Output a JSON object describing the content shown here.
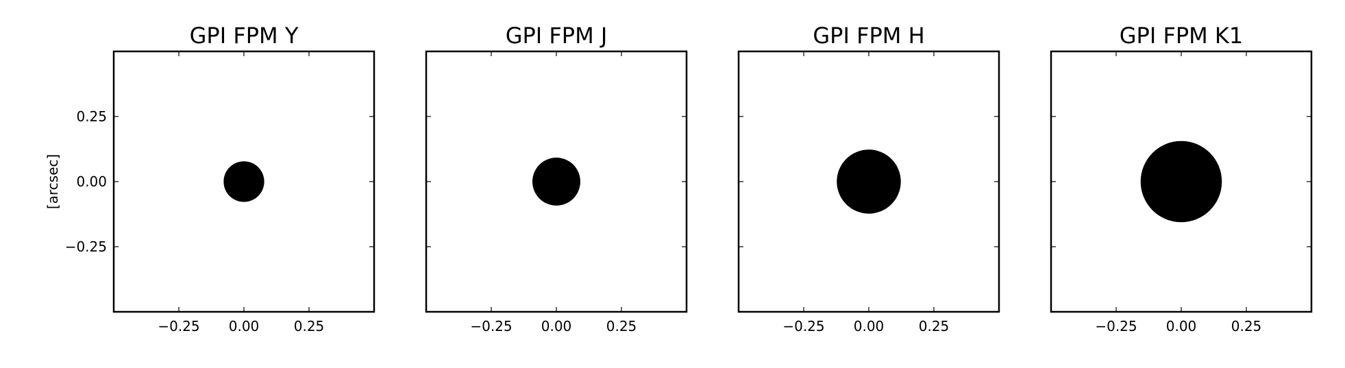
{
  "figure": {
    "background": "#ffffff",
    "ylabel": "[arcsec]"
  },
  "chart_data": [
    {
      "type": "heatmap",
      "title": "GPI FPM Y",
      "xlim": [
        -0.5,
        0.5
      ],
      "ylim": [
        -0.5,
        0.5
      ],
      "xticks": [
        -0.25,
        0.0,
        0.25
      ],
      "yticks": [
        -0.25,
        0.0,
        0.25
      ],
      "xtick_labels": [
        "−0.25",
        "0.00",
        "0.25"
      ],
      "ytick_labels": [
        "−0.25",
        "0.00",
        "0.25"
      ],
      "ylabel": "[arcsec]",
      "show_yticklabels": true,
      "mask": {
        "shape": "circle",
        "center": [
          0.0,
          0.0
        ],
        "radius": 0.078,
        "fill": "#000000",
        "background": "#ffffff"
      }
    },
    {
      "type": "heatmap",
      "title": "GPI FPM J",
      "xlim": [
        -0.5,
        0.5
      ],
      "ylim": [
        -0.5,
        0.5
      ],
      "xticks": [
        -0.25,
        0.0,
        0.25
      ],
      "yticks": [
        -0.25,
        0.0,
        0.25
      ],
      "xtick_labels": [
        "−0.25",
        "0.00",
        "0.25"
      ],
      "ytick_labels": [],
      "ylabel": "",
      "show_yticklabels": false,
      "mask": {
        "shape": "circle",
        "center": [
          0.0,
          0.0
        ],
        "radius": 0.092,
        "fill": "#000000",
        "background": "#ffffff"
      }
    },
    {
      "type": "heatmap",
      "title": "GPI FPM H",
      "xlim": [
        -0.5,
        0.5
      ],
      "ylim": [
        -0.5,
        0.5
      ],
      "xticks": [
        -0.25,
        0.0,
        0.25
      ],
      "yticks": [
        -0.25,
        0.0,
        0.25
      ],
      "xtick_labels": [
        "−0.25",
        "0.00",
        "0.25"
      ],
      "ytick_labels": [],
      "ylabel": "",
      "show_yticklabels": false,
      "mask": {
        "shape": "circle",
        "center": [
          0.0,
          0.0
        ],
        "radius": 0.123,
        "fill": "#000000",
        "background": "#ffffff"
      }
    },
    {
      "type": "heatmap",
      "title": "GPI FPM K1",
      "xlim": [
        -0.5,
        0.5
      ],
      "ylim": [
        -0.5,
        0.5
      ],
      "xticks": [
        -0.25,
        0.0,
        0.25
      ],
      "yticks": [
        -0.25,
        0.0,
        0.25
      ],
      "xtick_labels": [
        "−0.25",
        "0.00",
        "0.25"
      ],
      "ytick_labels": [],
      "ylabel": "",
      "show_yticklabels": false,
      "mask": {
        "shape": "circle",
        "center": [
          0.0,
          0.0
        ],
        "radius": 0.156,
        "fill": "#000000",
        "background": "#ffffff"
      }
    }
  ]
}
